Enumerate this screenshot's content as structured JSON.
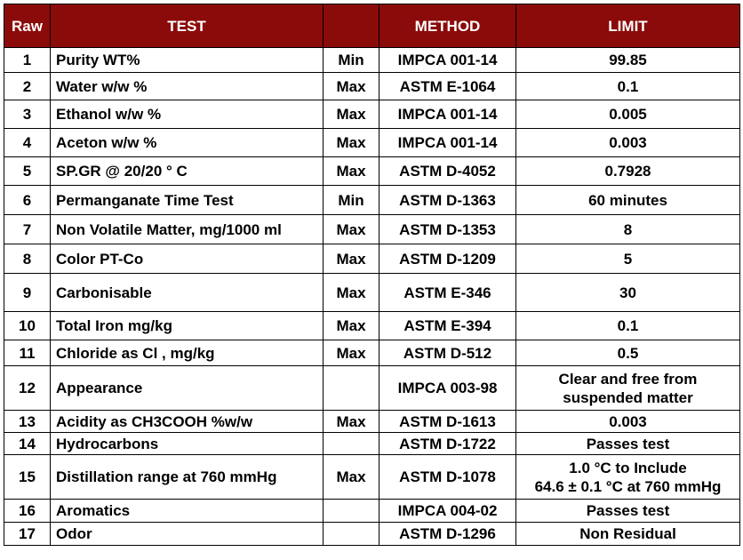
{
  "headers": {
    "raw": "Raw",
    "test": "TEST",
    "minmax": "",
    "method": "METHOD",
    "limit": "LIMIT"
  },
  "colors": {
    "header_bg": "#8b0a0a",
    "header_text": "#ffffff"
  },
  "rows": [
    {
      "raw": "1",
      "test": "Purity WT%",
      "minmax": "Min",
      "method": "IMPCA 001-14",
      "limit": [
        "99.85"
      ]
    },
    {
      "raw": "2",
      "test": "Water w/w %",
      "minmax": "Max",
      "method": "ASTM E-1064",
      "limit": [
        "0.1"
      ]
    },
    {
      "raw": "3",
      "test": "Ethanol w/w %",
      "minmax": "Max",
      "method": "IMPCA 001-14",
      "limit": [
        "0.005"
      ]
    },
    {
      "raw": "4",
      "test": "Aceton w/w %",
      "minmax": "Max",
      "method": "IMPCA 001-14",
      "limit": [
        "0.003"
      ]
    },
    {
      "raw": "5",
      "test": "SP.GR @ 20/20 ° C",
      "minmax": "Max",
      "method": "ASTM D-4052",
      "limit": [
        "0.7928"
      ]
    },
    {
      "raw": "6",
      "test": "Permanganate Time Test",
      "minmax": "Min",
      "method": "ASTM D-1363",
      "limit": [
        "60 minutes"
      ]
    },
    {
      "raw": "7",
      "test": "Non Volatile Matter, mg/1000 ml",
      "minmax": "Max",
      "method": "ASTM D-1353",
      "limit": [
        "8"
      ]
    },
    {
      "raw": "8",
      "test": "Color PT-Co",
      "minmax": "Max",
      "method": "ASTM D-1209",
      "limit": [
        "5"
      ]
    },
    {
      "raw": "9",
      "test": "Carbonisable",
      "minmax": "Max",
      "method": "ASTM E-346",
      "limit": [
        "30"
      ]
    },
    {
      "raw": "10",
      "test": "Total Iron mg/kg",
      "minmax": "Max",
      "method": "ASTM E-394",
      "limit": [
        "0.1"
      ]
    },
    {
      "raw": "11",
      "test": "Chloride as Cl , mg/kg",
      "minmax": "Max",
      "method": "ASTM D-512",
      "limit": [
        "0.5"
      ]
    },
    {
      "raw": "12",
      "test": "Appearance",
      "minmax": "",
      "method": "IMPCA 003-98",
      "limit": [
        "Clear and free from",
        "suspended matter"
      ]
    },
    {
      "raw": "13",
      "test": "Acidity as CH3COOH %w/w",
      "minmax": "Max",
      "method": "ASTM D-1613",
      "limit": [
        "0.003"
      ]
    },
    {
      "raw": "14",
      "test": "Hydrocarbons",
      "minmax": "",
      "method": "ASTM D-1722",
      "limit": [
        "Passes test"
      ]
    },
    {
      "raw": "15",
      "test": "Distillation range at 760 mmHg",
      "minmax": "Max",
      "method": "ASTM D-1078",
      "limit": [
        "1.0 °C to Include",
        "64.6 ± 0.1 °C at 760 mmHg"
      ]
    },
    {
      "raw": "16",
      "test": "Aromatics",
      "minmax": "",
      "method": "IMPCA 004-02",
      "limit": [
        "Passes test"
      ]
    },
    {
      "raw": "17",
      "test": "Odor",
      "minmax": "",
      "method": "ASTM D-1296",
      "limit": [
        "Non Residual"
      ]
    }
  ]
}
